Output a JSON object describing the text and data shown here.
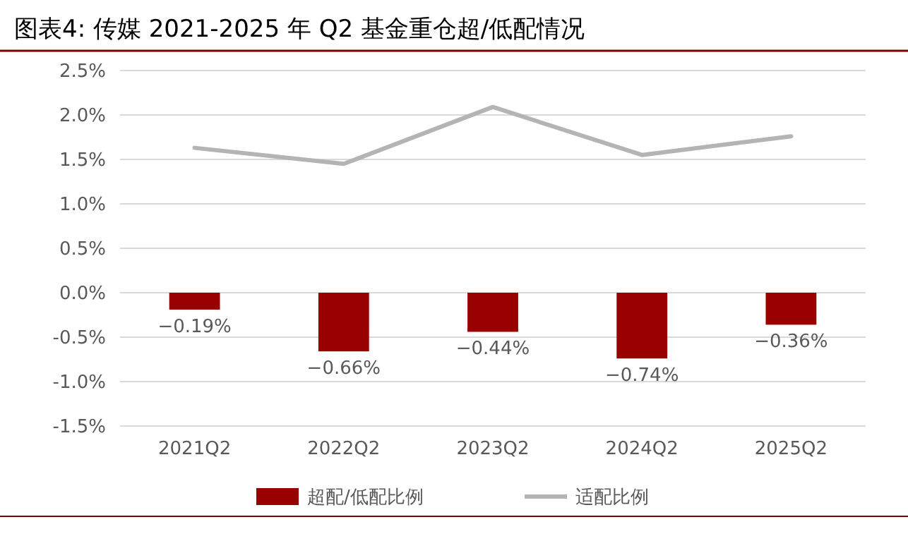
{
  "chart_data": {
    "type": "bar",
    "title": "图表4:  传媒 2021-2025 年 Q2 基金重仓超/低配情况",
    "categories": [
      "2021Q2",
      "2022Q2",
      "2023Q2",
      "2024Q2",
      "2025Q2"
    ],
    "series": [
      {
        "name": "超配/低配比例",
        "color": "#990000",
        "values": [
          -0.19,
          -0.66,
          -0.44,
          -0.74,
          -0.36
        ],
        "value_labels": [
          "−0.19%",
          "−0.66%",
          "−0.44%",
          "−0.74%",
          "−0.36%"
        ]
      },
      {
        "name": "适配比例",
        "type": "line",
        "color": "#b4b4b4",
        "values": [
          1.63,
          1.45,
          2.09,
          1.55,
          1.76
        ]
      }
    ],
    "ylim": [
      -1.5,
      2.5
    ],
    "yticks": [
      {
        "value": -1.5,
        "label": "-1.5%"
      },
      {
        "value": -1.0,
        "label": "-1.0%"
      },
      {
        "value": -0.5,
        "label": "-0.5%"
      },
      {
        "value": 0,
        "label": "0.0%"
      },
      {
        "value": 0.5,
        "label": "0.5%"
      },
      {
        "value": 1.0,
        "label": "1.0%"
      },
      {
        "value": 1.5,
        "label": "1.5%"
      },
      {
        "value": 2.0,
        "label": "2.0%"
      },
      {
        "value": 2.5,
        "label": "2.5%"
      }
    ],
    "grid": "y",
    "legend": "bottom"
  }
}
